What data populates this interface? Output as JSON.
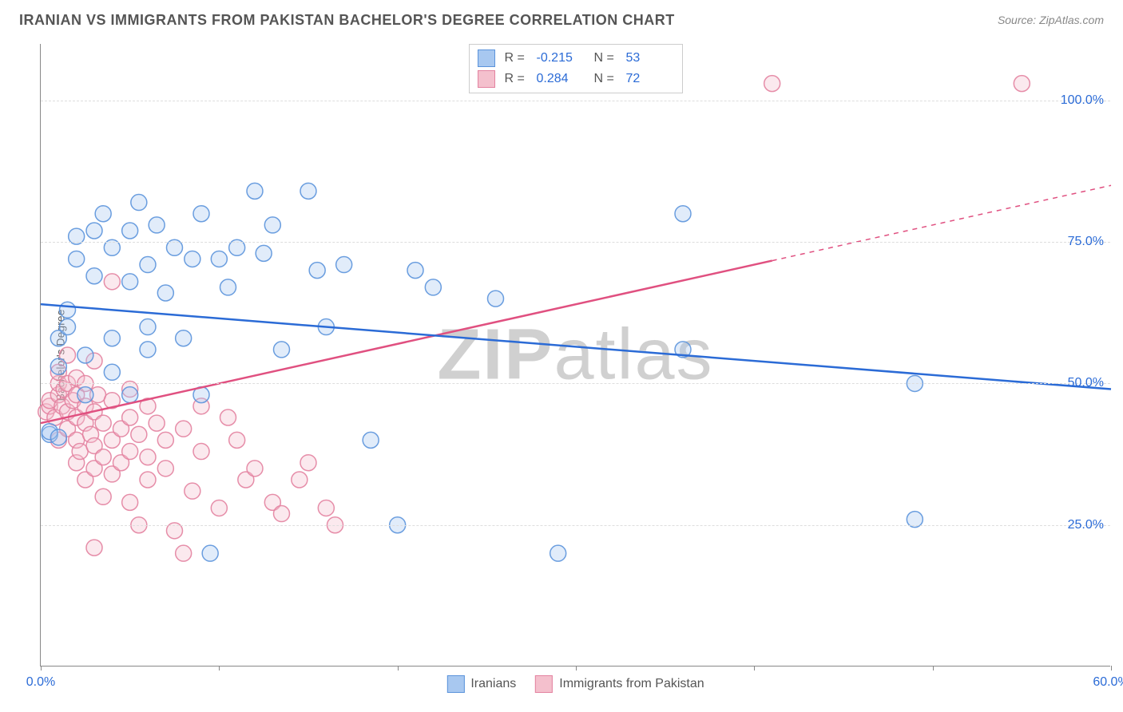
{
  "title": "IRANIAN VS IMMIGRANTS FROM PAKISTAN BACHELOR'S DEGREE CORRELATION CHART",
  "source": "Source: ZipAtlas.com",
  "watermark": "ZIPatlas",
  "ylabel": "Bachelor's Degree",
  "chart": {
    "type": "scatter",
    "background_color": "#ffffff",
    "grid_color": "#dddddd",
    "grid_dash": "4,4",
    "xlim": [
      0,
      60
    ],
    "ylim": [
      0,
      110
    ],
    "x_ticks": [
      0,
      10,
      20,
      30,
      40,
      50,
      60
    ],
    "x_tick_labels": {
      "0": "0.0%",
      "60": "60.0%"
    },
    "y_gridlines": [
      25,
      50,
      75,
      100
    ],
    "y_tick_labels": {
      "25": "25.0%",
      "50": "50.0%",
      "75": "75.0%",
      "100": "100.0%"
    },
    "marker_radius": 10,
    "marker_fill_opacity": 0.35,
    "marker_stroke_opacity": 0.9,
    "line_width": 2.5
  },
  "series": {
    "iranians": {
      "label": "Iranians",
      "color_fill": "#a8c8f0",
      "color_stroke": "#5b93db",
      "R": "-0.215",
      "N": "53",
      "regression": {
        "x1": 0,
        "y1": 64,
        "x2": 60,
        "y2": 49,
        "solid_until_x": 60
      },
      "points": [
        [
          0.5,
          41
        ],
        [
          0.5,
          41.5
        ],
        [
          1,
          40.5
        ],
        [
          1,
          53
        ],
        [
          1,
          58
        ],
        [
          1.5,
          60
        ],
        [
          1.5,
          63
        ],
        [
          2,
          72
        ],
        [
          2,
          76
        ],
        [
          2.5,
          48
        ],
        [
          2.5,
          55
        ],
        [
          3,
          69
        ],
        [
          3,
          77
        ],
        [
          3.5,
          80
        ],
        [
          4,
          52
        ],
        [
          4,
          58
        ],
        [
          4,
          74
        ],
        [
          5,
          48
        ],
        [
          5,
          68
        ],
        [
          5,
          77
        ],
        [
          5.5,
          82
        ],
        [
          6,
          56
        ],
        [
          6,
          60
        ],
        [
          6,
          71
        ],
        [
          6.5,
          78
        ],
        [
          7,
          66
        ],
        [
          7.5,
          74
        ],
        [
          8,
          58
        ],
        [
          8.5,
          72
        ],
        [
          9,
          80
        ],
        [
          9,
          48
        ],
        [
          9.5,
          20
        ],
        [
          10,
          72
        ],
        [
          10.5,
          67
        ],
        [
          11,
          74
        ],
        [
          12,
          84
        ],
        [
          12.5,
          73
        ],
        [
          13,
          78
        ],
        [
          13.5,
          56
        ],
        [
          15,
          84
        ],
        [
          15.5,
          70
        ],
        [
          16,
          60
        ],
        [
          17,
          71
        ],
        [
          18.5,
          40
        ],
        [
          20,
          25
        ],
        [
          21,
          70
        ],
        [
          22,
          67
        ],
        [
          25.5,
          65
        ],
        [
          29,
          20
        ],
        [
          36,
          80
        ],
        [
          36,
          56
        ],
        [
          49,
          50
        ],
        [
          49,
          26
        ]
      ]
    },
    "pakistan": {
      "label": "Immigrants from Pakistan",
      "color_fill": "#f4c0cd",
      "color_stroke": "#e382a0",
      "R": "0.284",
      "N": "72",
      "regression": {
        "x1": 0,
        "y1": 43,
        "x2": 60,
        "y2": 85,
        "solid_until_x": 41
      },
      "points": [
        [
          0.3,
          45
        ],
        [
          0.5,
          46
        ],
        [
          0.5,
          47
        ],
        [
          0.8,
          44
        ],
        [
          1,
          40
        ],
        [
          1,
          48
        ],
        [
          1,
          50
        ],
        [
          1,
          52
        ],
        [
          1.2,
          46
        ],
        [
          1.3,
          49
        ],
        [
          1.5,
          42
        ],
        [
          1.5,
          45
        ],
        [
          1.5,
          50
        ],
        [
          1.5,
          55
        ],
        [
          1.8,
          47
        ],
        [
          2,
          36
        ],
        [
          2,
          40
        ],
        [
          2,
          44
        ],
        [
          2,
          48
        ],
        [
          2,
          51
        ],
        [
          2.2,
          38
        ],
        [
          2.5,
          33
        ],
        [
          2.5,
          43
        ],
        [
          2.5,
          46
        ],
        [
          2.5,
          50
        ],
        [
          2.8,
          41
        ],
        [
          3,
          21
        ],
        [
          3,
          35
        ],
        [
          3,
          39
        ],
        [
          3,
          45
        ],
        [
          3,
          54
        ],
        [
          3.2,
          48
        ],
        [
          3.5,
          30
        ],
        [
          3.5,
          37
        ],
        [
          3.5,
          43
        ],
        [
          4,
          34
        ],
        [
          4,
          40
        ],
        [
          4,
          47
        ],
        [
          4,
          68
        ],
        [
          4.5,
          36
        ],
        [
          4.5,
          42
        ],
        [
          5,
          29
        ],
        [
          5,
          38
        ],
        [
          5,
          44
        ],
        [
          5,
          49
        ],
        [
          5.5,
          25
        ],
        [
          5.5,
          41
        ],
        [
          6,
          33
        ],
        [
          6,
          37
        ],
        [
          6,
          46
        ],
        [
          6.5,
          43
        ],
        [
          7,
          35
        ],
        [
          7,
          40
        ],
        [
          7.5,
          24
        ],
        [
          8,
          20
        ],
        [
          8,
          42
        ],
        [
          8.5,
          31
        ],
        [
          9,
          38
        ],
        [
          9,
          46
        ],
        [
          10,
          28
        ],
        [
          10.5,
          44
        ],
        [
          11,
          40
        ],
        [
          11.5,
          33
        ],
        [
          12,
          35
        ],
        [
          13,
          29
        ],
        [
          13.5,
          27
        ],
        [
          14.5,
          33
        ],
        [
          15,
          36
        ],
        [
          16,
          28
        ],
        [
          16.5,
          25
        ],
        [
          41,
          103
        ],
        [
          55,
          103
        ]
      ]
    }
  },
  "legend_top": {
    "r_label": "R =",
    "n_label": "N ="
  }
}
